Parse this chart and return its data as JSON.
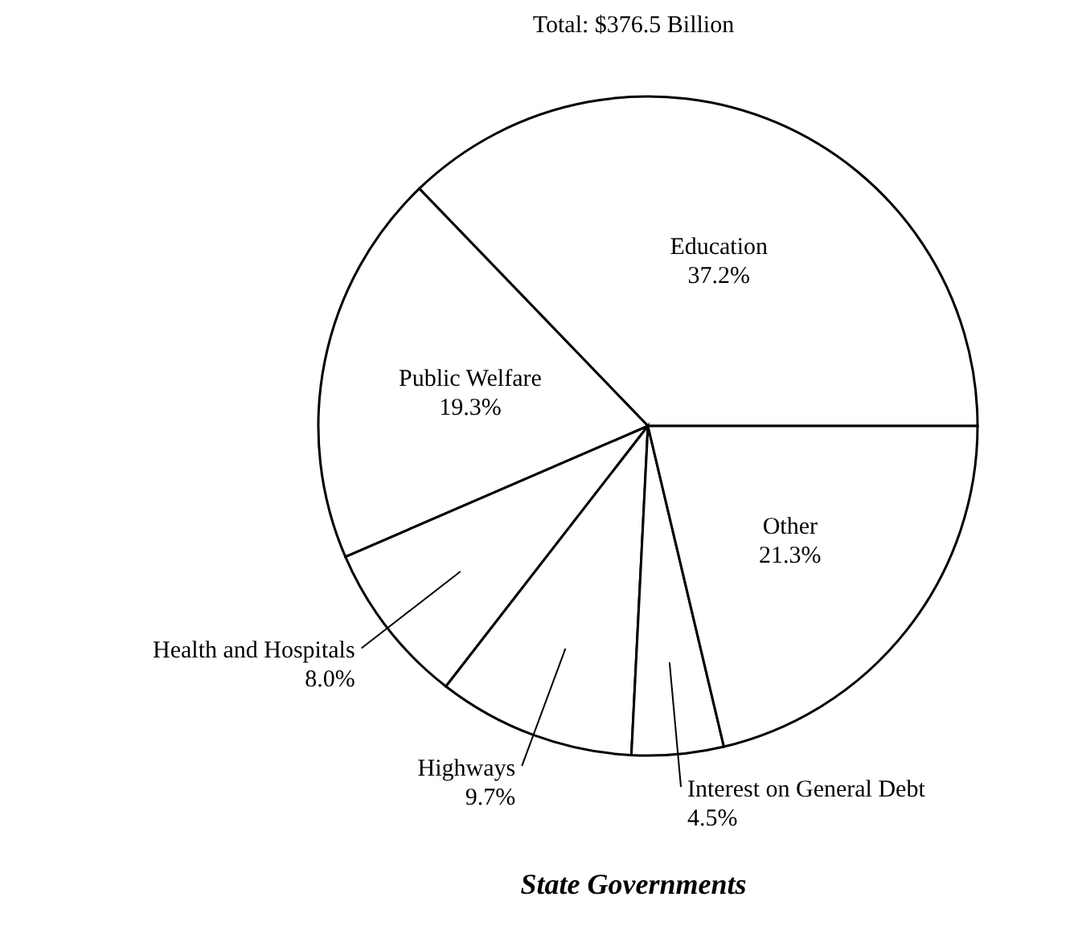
{
  "chart_data": {
    "type": "pie",
    "title": "Total: $376.5 Billion",
    "categories": [
      "Education",
      "Public Welfare",
      "Health and Hospitals",
      "Highways",
      "Interest on General Debt",
      "Other"
    ],
    "values": [
      37.2,
      19.3,
      8.0,
      9.7,
      4.5,
      21.3
    ],
    "colors": [
      "#ffffff",
      "#ffffff",
      "#ffffff",
      "#ffffff",
      "#ffffff",
      "#ffffff"
    ],
    "value_labels": [
      "37.2%",
      "19.3%",
      "8.0%",
      "9.7%",
      "4.5%",
      "21.3%"
    ],
    "annotations": [
      "State Governments"
    ]
  }
}
